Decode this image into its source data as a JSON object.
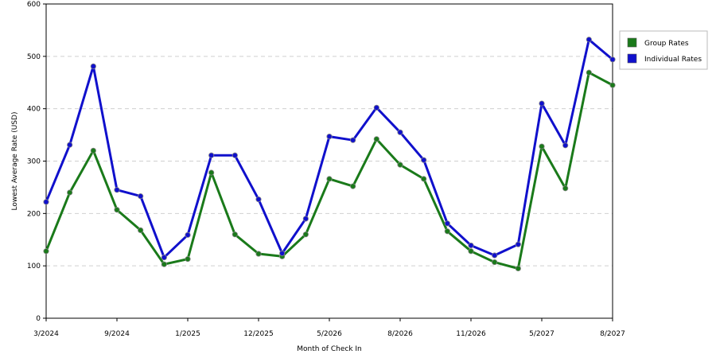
{
  "chart_data": {
    "type": "line",
    "xlabel": "Month of Check In",
    "ylabel": "Lowest Average Rate (USD)",
    "ylim": [
      0,
      600
    ],
    "yticks": [
      0,
      100,
      200,
      300,
      400,
      500,
      600
    ],
    "x_tick_labels": [
      {
        "index": 0,
        "label": "3/2024"
      },
      {
        "index": 3,
        "label": "9/2024"
      },
      {
        "index": 6,
        "label": "1/2025"
      },
      {
        "index": 9,
        "label": "12/2025"
      },
      {
        "index": 12,
        "label": "5/2026"
      },
      {
        "index": 15,
        "label": "8/2026"
      },
      {
        "index": 18,
        "label": "11/2026"
      },
      {
        "index": 21,
        "label": "5/2027"
      },
      {
        "index": 24,
        "label": "8/2027"
      }
    ],
    "point_count": 25,
    "grid": "horizontal dashed",
    "legend_position": "right",
    "series": [
      {
        "name": "Group Rates",
        "color": "#1a7a1a",
        "values": [
          128,
          240,
          320,
          207,
          168,
          103,
          113,
          278,
          160,
          123,
          118,
          160,
          266,
          252,
          342,
          293,
          266,
          166,
          128,
          107,
          95,
          328,
          248,
          469,
          445
        ]
      },
      {
        "name": "Individual Rates",
        "color": "#1010cc",
        "values": [
          222,
          331,
          481,
          245,
          233,
          116,
          159,
          311,
          311,
          227,
          124,
          190,
          347,
          340,
          402,
          355,
          302,
          181,
          139,
          120,
          141,
          410,
          330,
          532,
          494
        ]
      }
    ]
  }
}
